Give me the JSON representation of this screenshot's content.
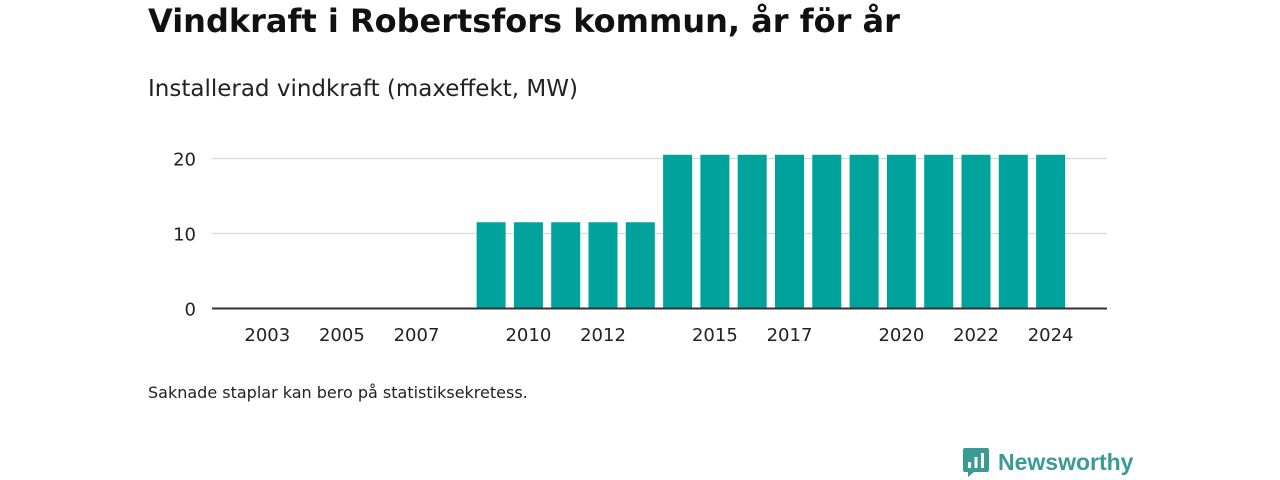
{
  "header": {
    "title": "Vindkraft i Robertsfors kommun, år för år",
    "subtitle": "Installerad vindkraft (maxeffekt, MW)"
  },
  "footer": {
    "note": "Saknade staplar kan bero på statistiksekretess.",
    "brand": "Newsworthy",
    "brand_icon": "newsworthy-logo-icon"
  },
  "colors": {
    "bar": "#00a39b",
    "grid": "#d9d9d9",
    "axis": "#333333",
    "brand": "#3a9a95"
  },
  "chart_data": {
    "type": "bar",
    "title": "Installerad vindkraft (maxeffekt, MW)",
    "xlabel": "",
    "ylabel": "",
    "categories": [
      "2002",
      "2003",
      "2004",
      "2005",
      "2006",
      "2007",
      "2008",
      "2009",
      "2010",
      "2011",
      "2012",
      "2013",
      "2014",
      "2015",
      "2016",
      "2017",
      "2018",
      "2019",
      "2020",
      "2021",
      "2022",
      "2023",
      "2024"
    ],
    "values": [
      null,
      null,
      null,
      null,
      null,
      null,
      null,
      11.5,
      11.5,
      11.5,
      11.5,
      11.5,
      20.5,
      20.5,
      20.5,
      20.5,
      20.5,
      20.5,
      20.5,
      20.5,
      20.5,
      20.5,
      20.5
    ],
    "x_tick_labels": [
      "2003",
      "2005",
      "2007",
      "2010",
      "2012",
      "2015",
      "2017",
      "2020",
      "2022",
      "2024"
    ],
    "y_ticks": [
      0,
      10,
      20
    ],
    "ylim": [
      0,
      22
    ],
    "grid": true,
    "legend": "none"
  }
}
